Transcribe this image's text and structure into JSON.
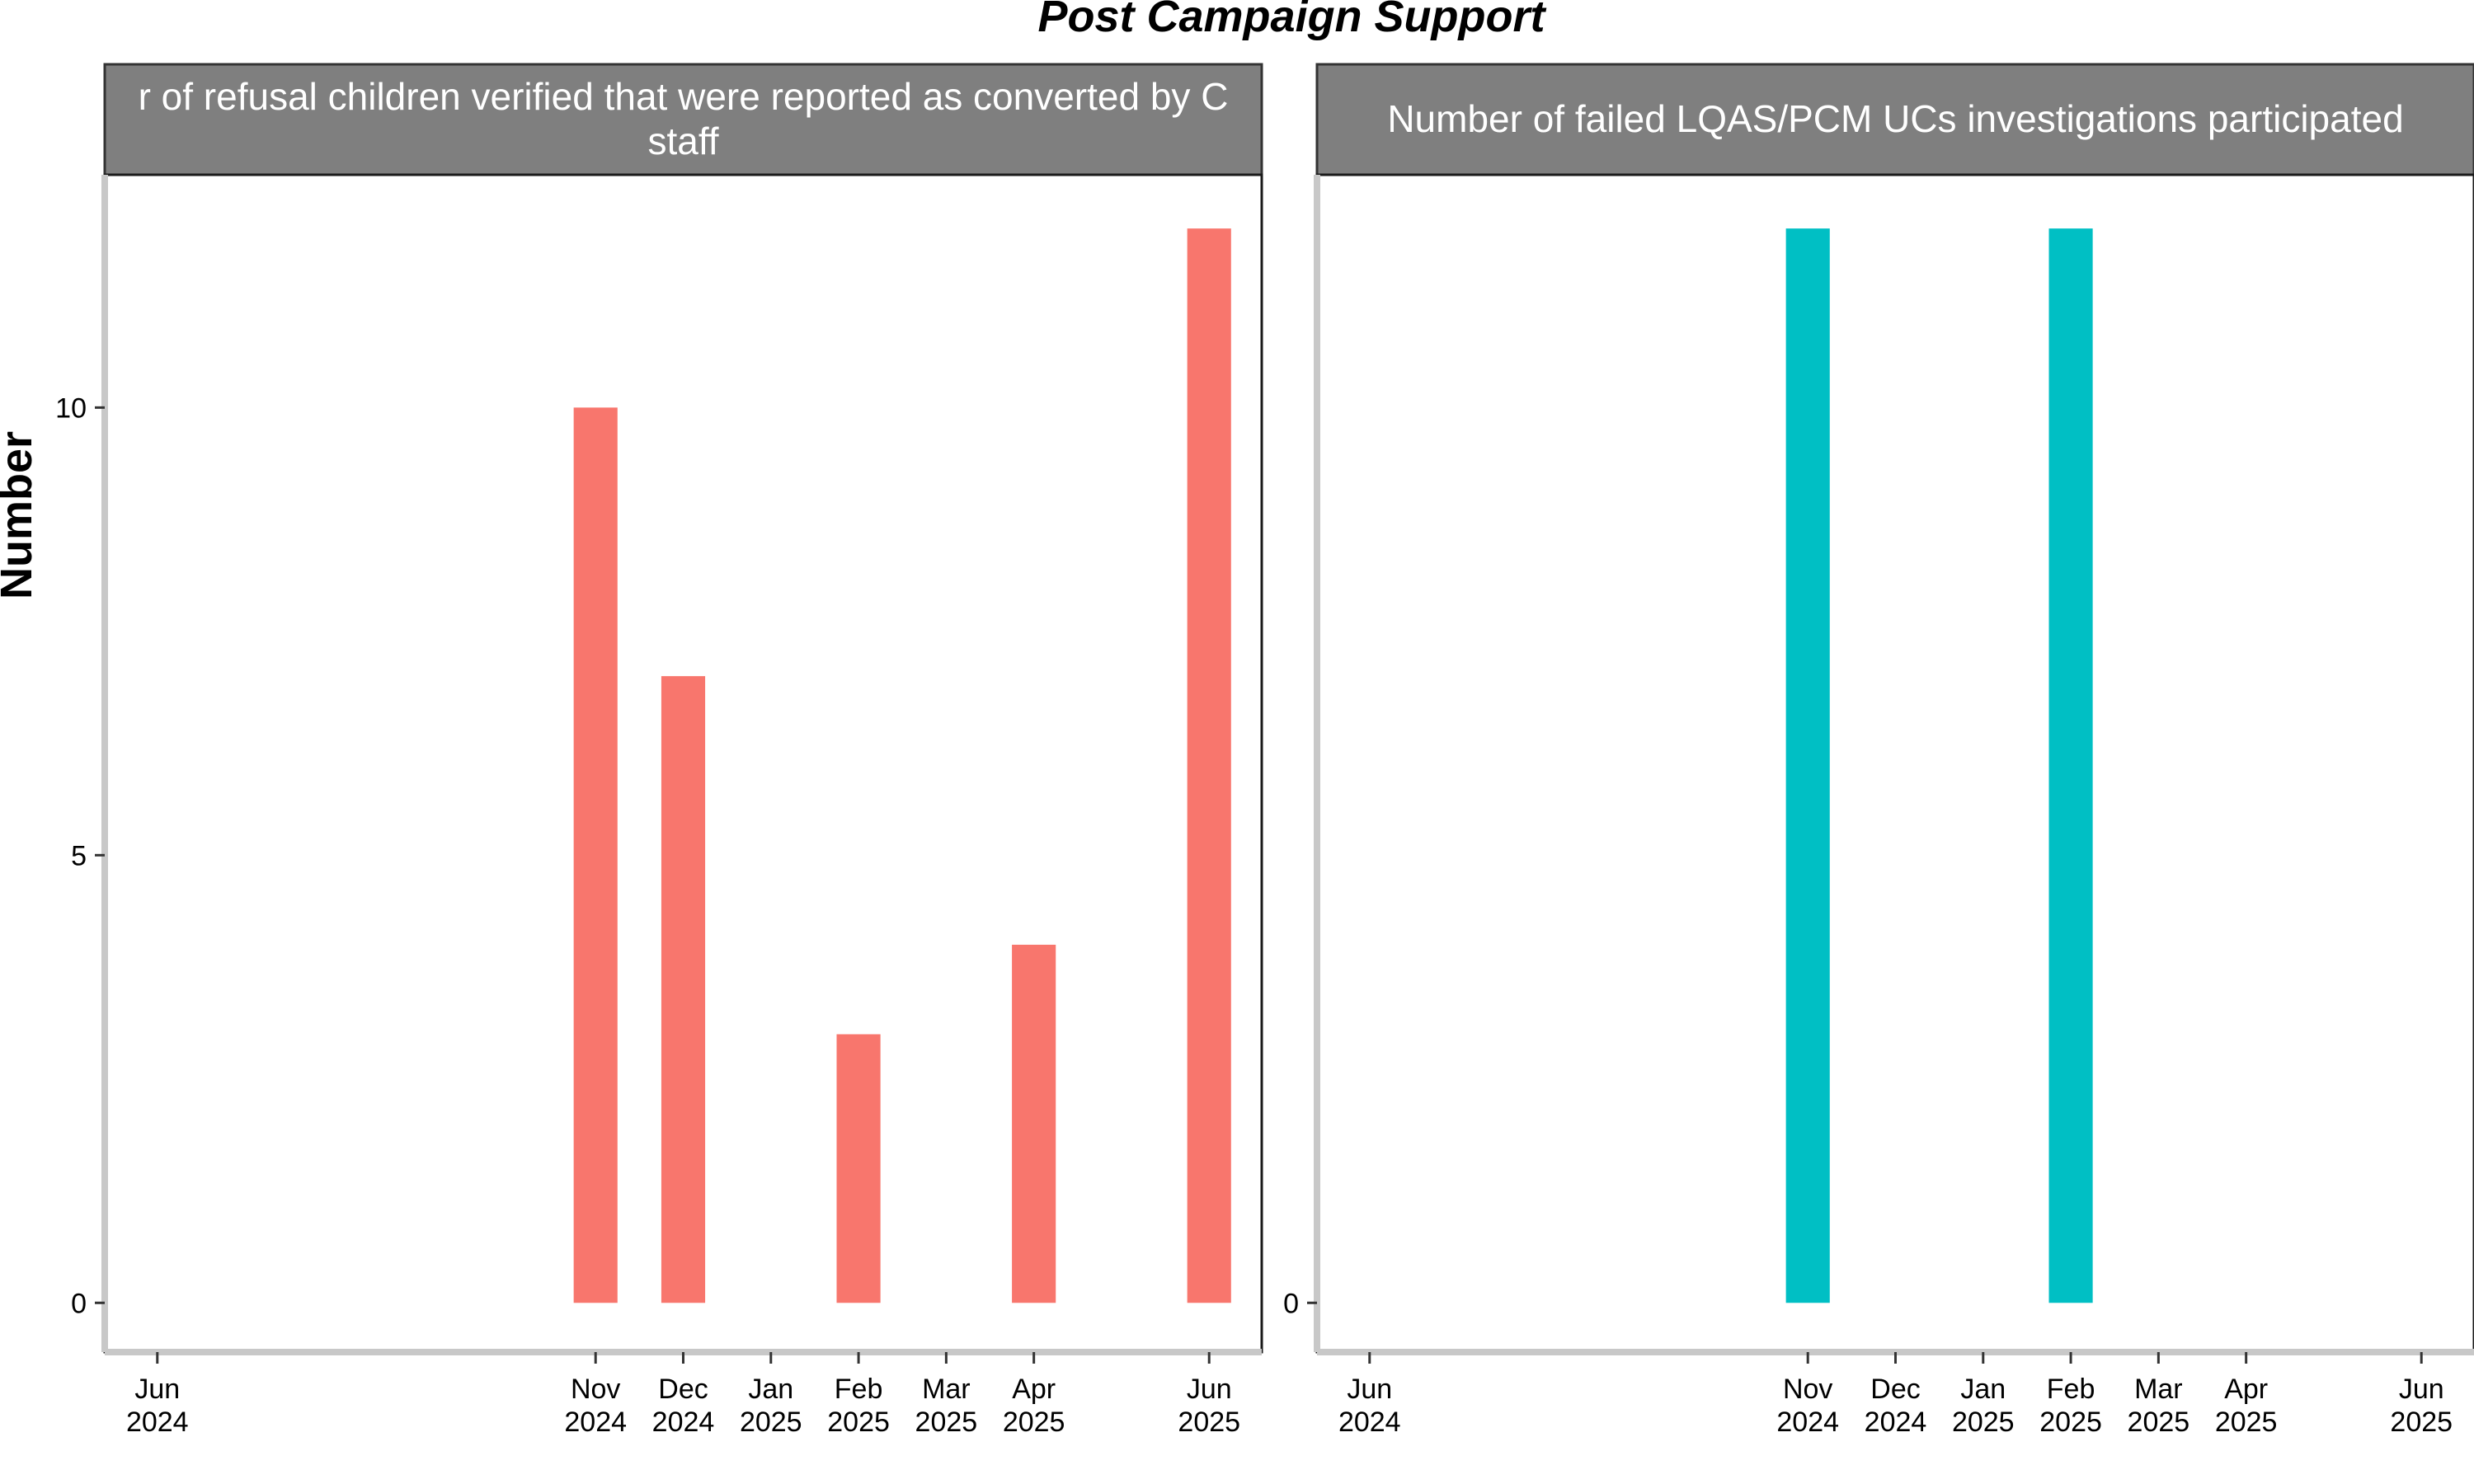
{
  "chart_data": {
    "type": "bar",
    "title": "Post Campaign Support",
    "ylabel": "Number",
    "xlabel": "",
    "x_ticks": [
      {
        "month": "Jun",
        "year": "2024",
        "date": "2024-06"
      },
      {
        "month": "Nov",
        "year": "2024",
        "date": "2024-11"
      },
      {
        "month": "Dec",
        "year": "2024",
        "date": "2024-12"
      },
      {
        "month": "Jan",
        "year": "2025",
        "date": "2025-01"
      },
      {
        "month": "Feb",
        "year": "2025",
        "date": "2025-02"
      },
      {
        "month": "Mar",
        "year": "2025",
        "date": "2025-03"
      },
      {
        "month": "Apr",
        "year": "2025",
        "date": "2025-04"
      },
      {
        "month": "Jun",
        "year": "2025",
        "date": "2025-06"
      }
    ],
    "panels": [
      {
        "strip_lines": [
          "r of refusal children verified that were reported as converted by C",
          "staff"
        ],
        "color": "#F8766D",
        "y_ticks": [
          0,
          5,
          10
        ],
        "ylim": [
          -0.55,
          12.6
        ],
        "bars": [
          {
            "date": "2024-11",
            "value": 10
          },
          {
            "date": "2024-12",
            "value": 7
          },
          {
            "date": "2025-02",
            "value": 3
          },
          {
            "date": "2025-04",
            "value": 4
          },
          {
            "date": "2025-06",
            "value": 12
          }
        ]
      },
      {
        "strip_lines": [
          "Number of failed LQAS/PCM UCs investigations participated"
        ],
        "color": "#00BFC4",
        "y_ticks": [
          0
        ],
        "ylim": [
          -0.55,
          12.6
        ],
        "bars": [
          {
            "date": "2024-11",
            "value": 12
          },
          {
            "date": "2025-02",
            "value": 12
          }
        ]
      }
    ]
  }
}
